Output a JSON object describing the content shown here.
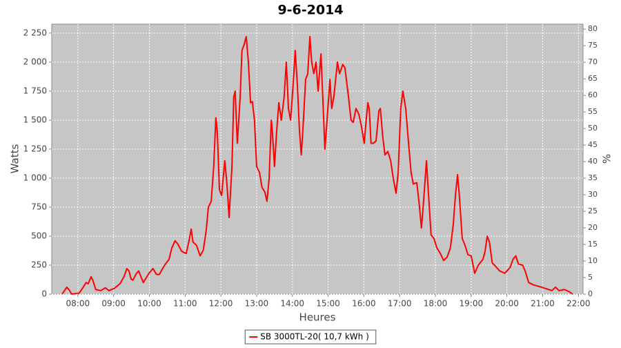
{
  "chart_data": {
    "type": "line",
    "title": "9-6-2014",
    "y_label": "Watts",
    "y2_label": "%",
    "x_label": "Heures",
    "x": [
      7.56,
      7.69,
      7.75,
      7.83,
      8.04,
      8.15,
      8.23,
      8.29,
      8.37,
      8.42,
      8.5,
      8.64,
      8.77,
      8.87,
      9.02,
      9.18,
      9.29,
      9.37,
      9.43,
      9.49,
      9.54,
      9.64,
      9.7,
      9.83,
      9.99,
      10.1,
      10.2,
      10.28,
      10.37,
      10.45,
      10.55,
      10.63,
      10.72,
      10.8,
      10.9,
      11.03,
      11.11,
      11.17,
      11.22,
      11.32,
      11.42,
      11.51,
      11.59,
      11.65,
      11.73,
      11.8,
      11.86,
      11.9,
      11.96,
      12.02,
      12.11,
      12.17,
      12.23,
      12.31,
      12.36,
      12.4,
      12.46,
      12.54,
      12.59,
      12.65,
      12.71,
      12.77,
      12.83,
      12.88,
      12.94,
      13.0,
      13.08,
      13.15,
      13.23,
      13.29,
      13.35,
      13.41,
      13.44,
      13.5,
      13.56,
      13.62,
      13.69,
      13.77,
      13.83,
      13.89,
      13.95,
      14.02,
      14.08,
      14.14,
      14.2,
      14.25,
      14.31,
      14.37,
      14.43,
      14.49,
      14.54,
      14.6,
      14.66,
      14.72,
      14.8,
      14.85,
      14.91,
      14.97,
      15.05,
      15.1,
      15.16,
      15.26,
      15.32,
      15.41,
      15.47,
      15.57,
      15.64,
      15.7,
      15.78,
      15.86,
      15.93,
      16.01,
      16.05,
      16.11,
      16.15,
      16.2,
      16.26,
      16.34,
      16.42,
      16.46,
      16.53,
      16.59,
      16.67,
      16.75,
      16.82,
      16.9,
      16.96,
      17.03,
      17.09,
      17.17,
      17.25,
      17.32,
      17.38,
      17.48,
      17.54,
      17.61,
      17.67,
      17.75,
      17.81,
      17.88,
      17.96,
      18.04,
      18.14,
      18.23,
      18.33,
      18.42,
      18.5,
      18.56,
      18.62,
      18.67,
      18.75,
      18.83,
      18.91,
      19.0,
      19.1,
      19.2,
      19.33,
      19.39,
      19.45,
      19.51,
      19.59,
      19.71,
      19.8,
      19.94,
      20.09,
      20.17,
      20.25,
      20.32,
      20.44,
      20.51,
      20.61,
      20.74,
      20.97,
      21.17,
      21.26,
      21.36,
      21.46,
      21.61,
      21.75,
      21.84
    ],
    "series": [
      {
        "name": "SB 3000TL-20( 10,7 kWh )",
        "color": "#ff0000",
        "values": [
          0,
          60,
          40,
          0,
          10,
          60,
          100,
          90,
          150,
          120,
          40,
          30,
          55,
          30,
          50,
          90,
          150,
          220,
          200,
          130,
          120,
          180,
          200,
          100,
          180,
          220,
          170,
          170,
          220,
          260,
          300,
          400,
          460,
          430,
          370,
          350,
          460,
          560,
          450,
          420,
          330,
          380,
          550,
          750,
          800,
          1100,
          1520,
          1400,
          900,
          850,
          1150,
          950,
          660,
          1100,
          1700,
          1750,
          1300,
          1700,
          2100,
          2150,
          2220,
          2000,
          1650,
          1660,
          1500,
          1100,
          1050,
          920,
          880,
          800,
          1000,
          1500,
          1400,
          1100,
          1400,
          1650,
          1500,
          1700,
          2000,
          1600,
          1500,
          1800,
          2100,
          1800,
          1400,
          1200,
          1500,
          1850,
          1900,
          2220,
          2000,
          1900,
          2000,
          1750,
          2070,
          1700,
          1250,
          1500,
          1850,
          1600,
          1700,
          2000,
          1900,
          1980,
          1950,
          1700,
          1500,
          1480,
          1600,
          1550,
          1450,
          1300,
          1450,
          1650,
          1600,
          1300,
          1300,
          1320,
          1580,
          1600,
          1350,
          1200,
          1230,
          1150,
          1000,
          870,
          1050,
          1600,
          1750,
          1600,
          1300,
          1050,
          950,
          960,
          800,
          570,
          800,
          1150,
          850,
          510,
          480,
          400,
          350,
          290,
          320,
          400,
          600,
          850,
          1030,
          850,
          480,
          420,
          340,
          330,
          180,
          250,
          300,
          370,
          500,
          450,
          270,
          230,
          200,
          180,
          230,
          300,
          330,
          260,
          250,
          200,
          100,
          80,
          60,
          40,
          30,
          60,
          30,
          40,
          20,
          0
        ]
      }
    ],
    "xlim": [
      7.27,
      22.13
    ],
    "xticks": [
      {
        "value": 8,
        "label": "08:00"
      },
      {
        "value": 9,
        "label": "09:00"
      },
      {
        "value": 10,
        "label": "10:00"
      },
      {
        "value": 11,
        "label": "11:00"
      },
      {
        "value": 12,
        "label": "12:00"
      },
      {
        "value": 13,
        "label": "13:00"
      },
      {
        "value": 14,
        "label": "14:00"
      },
      {
        "value": 15,
        "label": "15:00"
      },
      {
        "value": 16,
        "label": "16:00"
      },
      {
        "value": 17,
        "label": "17:00"
      },
      {
        "value": 18,
        "label": "18:00"
      },
      {
        "value": 19,
        "label": "19:00"
      },
      {
        "value": 20,
        "label": "20:00"
      },
      {
        "value": 21,
        "label": "21:00"
      },
      {
        "value": 22,
        "label": "22:00"
      }
    ],
    "ylim": [
      0,
      2327
    ],
    "yticks": [
      0,
      250,
      500,
      750,
      {
        "value": 1000,
        "label": "1 000"
      },
      {
        "value": 1250,
        "label": "1 250"
      },
      {
        "value": 1500,
        "label": "1 500"
      },
      {
        "value": 1750,
        "label": "1 750"
      },
      {
        "value": 2000,
        "label": "2 000"
      },
      {
        "value": 2250,
        "label": "2 250"
      }
    ],
    "y2lim": [
      0,
      81.5
    ],
    "y2ticks": [
      0,
      5,
      10,
      15,
      20,
      25,
      30,
      35,
      40,
      45,
      50,
      55,
      60,
      65,
      70,
      75,
      80
    ],
    "grid": true,
    "legend": "bottom"
  }
}
